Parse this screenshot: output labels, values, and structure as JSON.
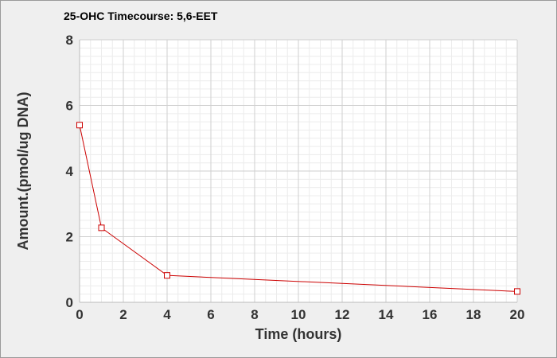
{
  "chart_data": {
    "type": "line",
    "title": "25-OHC Timecourse: 5,6-EET",
    "xlabel": "Time (hours)",
    "ylabel": "Amount.(pmol/ug DNA)",
    "xlim": [
      0,
      20
    ],
    "ylim": [
      0,
      8
    ],
    "xticks": [
      0,
      2,
      4,
      6,
      8,
      10,
      12,
      14,
      16,
      18,
      20
    ],
    "yticks": [
      0,
      2,
      4,
      6,
      8
    ],
    "grid": true,
    "series": [
      {
        "x": [
          0,
          1,
          4,
          20
        ],
        "y": [
          5.4,
          2.27,
          0.82,
          0.33
        ],
        "color": "#cc0000",
        "marker": "square"
      }
    ]
  }
}
